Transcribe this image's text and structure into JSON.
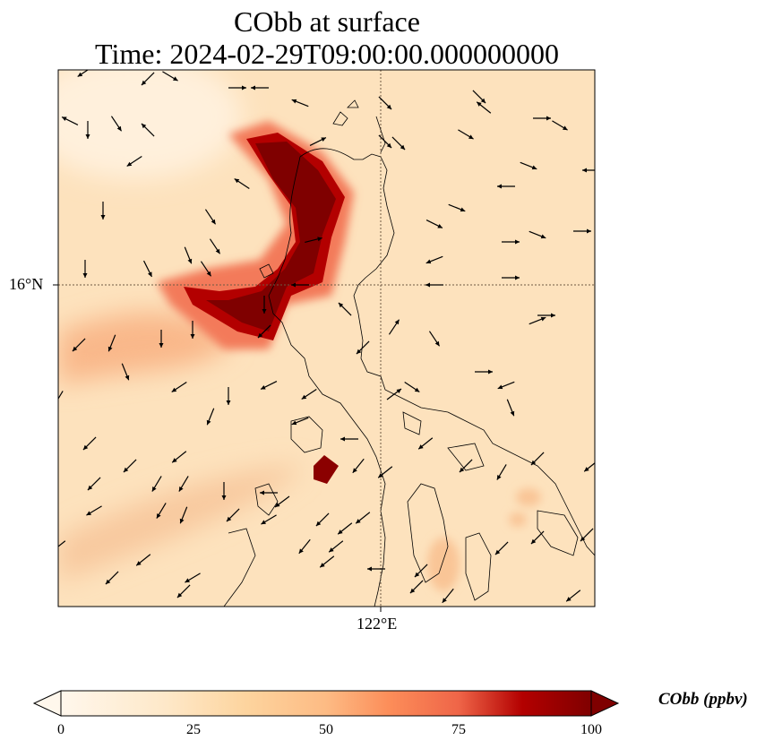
{
  "title": {
    "line1": "CObb at surface",
    "line2": "Time: 2024-02-29T09:00:00.000000000"
  },
  "map": {
    "lat_tick_label": "16°N",
    "lon_tick_label": "122°E",
    "variable": "CObb",
    "unit": "ppbv",
    "colormap": "OrRd",
    "colors": {
      "low": "#fff7ec",
      "mid": "#fdd49e",
      "high_mid": "#ef6548",
      "high": "#7f0000",
      "land_line": "#000000",
      "grid_line": "#6e5a44"
    },
    "features": {
      "plume": "high CObb plume along northwest coast of Luzon, extending offshore to the west",
      "wind_vectors": "black arrows",
      "coastline": "black outline"
    }
  },
  "colorbar": {
    "label": "CObb (ppbv)",
    "ticks": [
      "0",
      "25",
      "50",
      "75",
      "100"
    ],
    "min": 0,
    "max": 100,
    "extend": "both"
  }
}
